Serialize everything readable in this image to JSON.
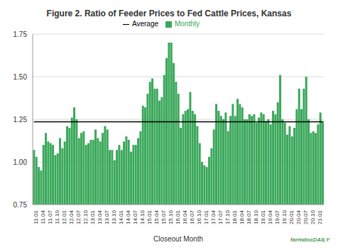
{
  "chart_data": {
    "type": "bar",
    "title": "Figure 2. Ratio of Feeder Prices to Fed Cattle Prices, Kansas",
    "x_label": "Closeout Month",
    "annotation": "farmdocDAILY",
    "categories": [
      "11.01",
      null,
      null,
      "11.04",
      null,
      null,
      "11.07",
      null,
      null,
      "11.10",
      null,
      null,
      "12.01",
      null,
      null,
      "12.04",
      null,
      null,
      "12.07",
      null,
      null,
      "12.10",
      null,
      null,
      "13.01",
      null,
      null,
      "13.04",
      null,
      null,
      "13.07",
      null,
      null,
      "13.10",
      null,
      null,
      "14.01",
      null,
      null,
      "14.04",
      null,
      null,
      "14.07",
      null,
      null,
      "14.10",
      null,
      null,
      "15.01",
      null,
      null,
      "15.04",
      null,
      null,
      "15.07",
      null,
      null,
      "15.10",
      null,
      null,
      "16.01",
      null,
      null,
      "16.04",
      null,
      null,
      "16.07",
      null,
      null,
      "16.10",
      null,
      null,
      "17.01",
      null,
      null,
      "17.04",
      null,
      null,
      "17.07",
      null,
      null,
      "17.10",
      null,
      null,
      "18.01",
      null,
      null,
      "18.04",
      null,
      null,
      "18.07",
      null,
      null,
      "18.10",
      null,
      null,
      "19.01",
      null,
      null,
      "19.04",
      null,
      null,
      "19.07",
      null,
      null,
      "19.10",
      null,
      null,
      "20.01",
      null,
      null,
      "20.04",
      null,
      null,
      "20.07",
      null,
      null,
      "20.10",
      null,
      null,
      "21.01",
      null,
      null
    ],
    "series": [
      {
        "name": "Monthly",
        "type": "bar",
        "color": "#3aa85a",
        "values": [
          1.07,
          1.03,
          0.97,
          0.95,
          1.1,
          1.17,
          1.12,
          1.11,
          1.1,
          1.04,
          1.05,
          1.14,
          1.08,
          1.12,
          1.21,
          1.2,
          1.26,
          1.32,
          1.25,
          1.14,
          1.17,
          1.18,
          1.1,
          1.11,
          1.13,
          1.13,
          1.19,
          1.14,
          1.12,
          1.17,
          1.21,
          1.19,
          1.07,
          1.07,
          1.01,
          1.07,
          1.1,
          1.07,
          1.12,
          1.15,
          1.13,
          1.06,
          1.1,
          1.1,
          1.14,
          1.18,
          1.33,
          1.32,
          1.4,
          1.47,
          1.49,
          1.43,
          1.43,
          1.36,
          1.38,
          1.51,
          1.61,
          1.7,
          1.7,
          1.58,
          1.47,
          1.4,
          1.2,
          1.28,
          1.3,
          1.31,
          1.41,
          1.3,
          1.28,
          1.21,
          1.11,
          1.0,
          0.98,
          0.97,
          1.03,
          1.08,
          1.19,
          1.34,
          1.3,
          1.27,
          1.25,
          1.29,
          1.18,
          1.27,
          1.34,
          1.27,
          1.37,
          1.34,
          1.32,
          1.25,
          1.25,
          1.28,
          1.27,
          1.28,
          1.23,
          1.26,
          1.29,
          1.28,
          1.24,
          1.25,
          1.22,
          1.3,
          1.28,
          1.35,
          1.51,
          1.25,
          1.23,
          1.16,
          1.21,
          1.15,
          1.2,
          1.31,
          1.43,
          1.31,
          1.43,
          1.5,
          1.25,
          1.17,
          1.18,
          1.17,
          1.22,
          1.29,
          1.24
        ]
      },
      {
        "name": "Average",
        "type": "line",
        "color": "#000000",
        "value": 1.235
      }
    ],
    "ylim": [
      0.75,
      1.75
    ],
    "yticks": [
      0.75,
      {
        "value": 1,
        "label": "1.00"
      },
      1.25,
      {
        "value": 1.5,
        "label": "1.50"
      },
      1.75
    ],
    "grid": true,
    "legend": "top"
  }
}
